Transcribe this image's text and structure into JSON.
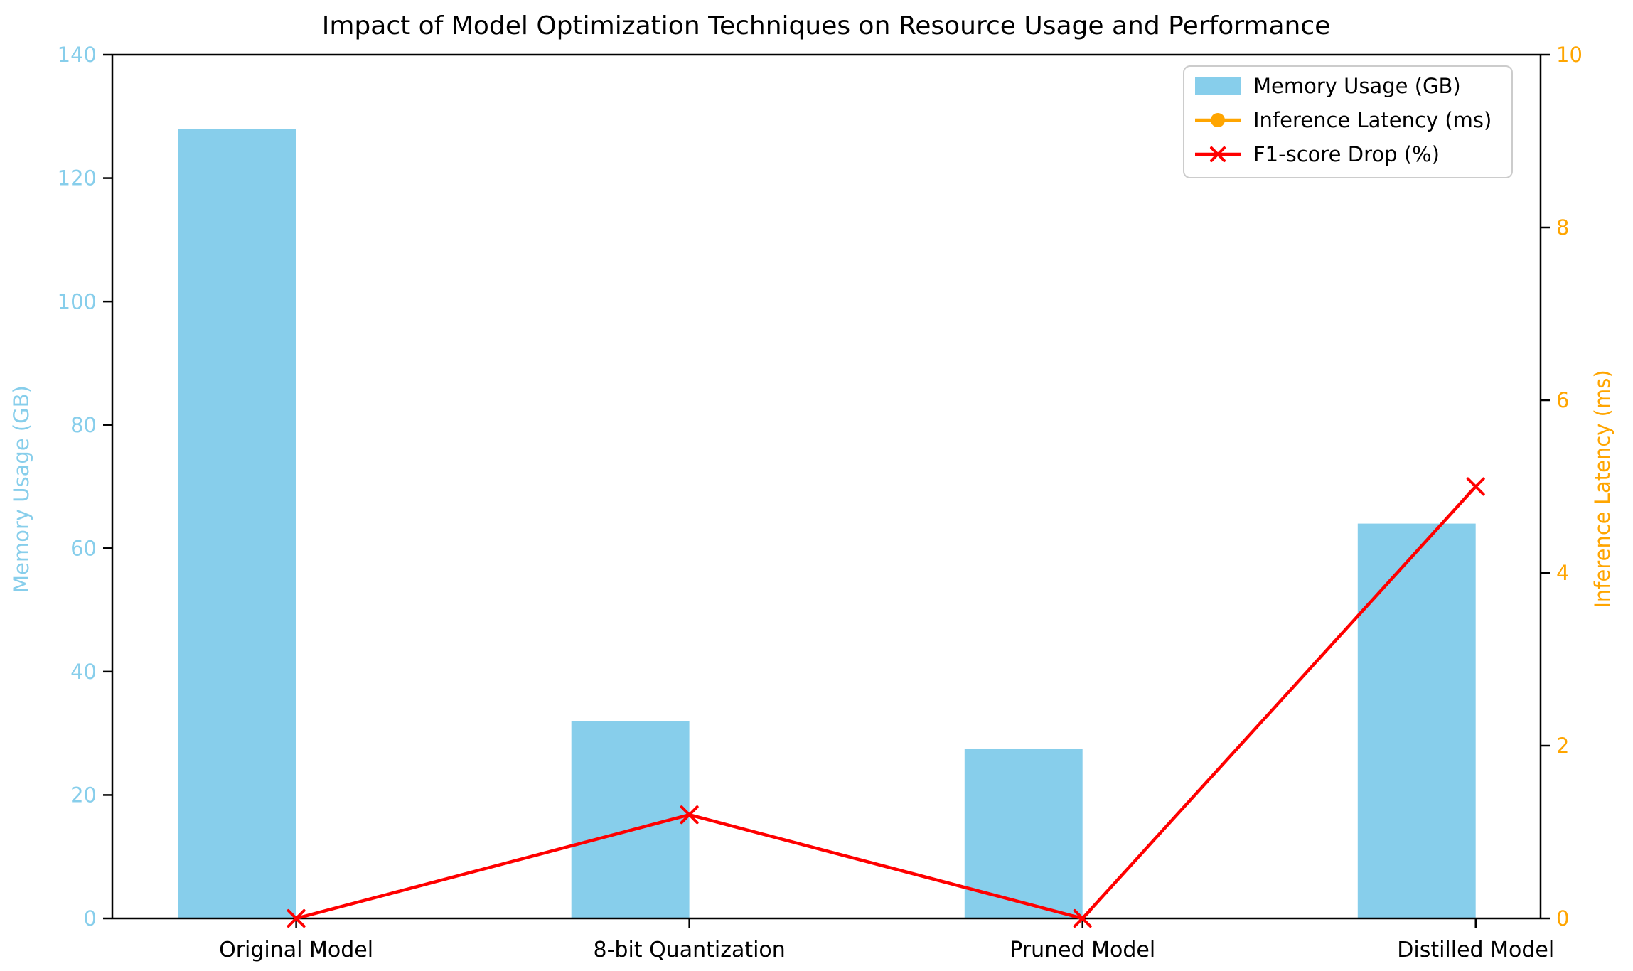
{
  "chart_data": {
    "type": "bar",
    "title": "Impact of Model Optimization Techniques on Resource Usage and Performance",
    "categories": [
      "Original Model",
      "8-bit Quantization",
      "Pruned Model",
      "Distilled Model"
    ],
    "series": [
      {
        "name": "Memory Usage (GB)",
        "kind": "bar",
        "axis": "left",
        "color": "#87CEEB",
        "values": [
          128,
          32,
          27.5,
          64
        ]
      },
      {
        "name": "F1-score Drop (%)",
        "kind": "line",
        "axis": "right",
        "color": "#FF0000",
        "marker": "x",
        "values": [
          0,
          1.2,
          0,
          5
        ]
      }
    ],
    "left_axis": {
      "label": "Memory Usage (GB)",
      "color": "#87CEEB",
      "range": [
        0,
        140
      ],
      "ticks": [
        0,
        20,
        40,
        60,
        80,
        100,
        120,
        140
      ]
    },
    "right_axis": {
      "label": "Inference Latency (ms)",
      "color": "#FFA500",
      "range": [
        0,
        10
      ],
      "ticks": [
        0,
        2,
        4,
        6,
        8,
        10
      ]
    },
    "x_axis": {
      "tick_label_color": "#000000"
    },
    "legend": {
      "position": "upper-right",
      "entries": [
        {
          "label": "Memory Usage (GB)",
          "handle": "patch",
          "color": "#87CEEB"
        },
        {
          "label": "Inference Latency (ms)",
          "handle": "line-circle",
          "color": "#FFA500"
        },
        {
          "label": "F1-score Drop (%)",
          "handle": "line-x",
          "color": "#FF0000"
        }
      ]
    },
    "grid": false,
    "note": "Legend lists Inference Latency (ms), but no orange line is visible inside the plot area."
  }
}
